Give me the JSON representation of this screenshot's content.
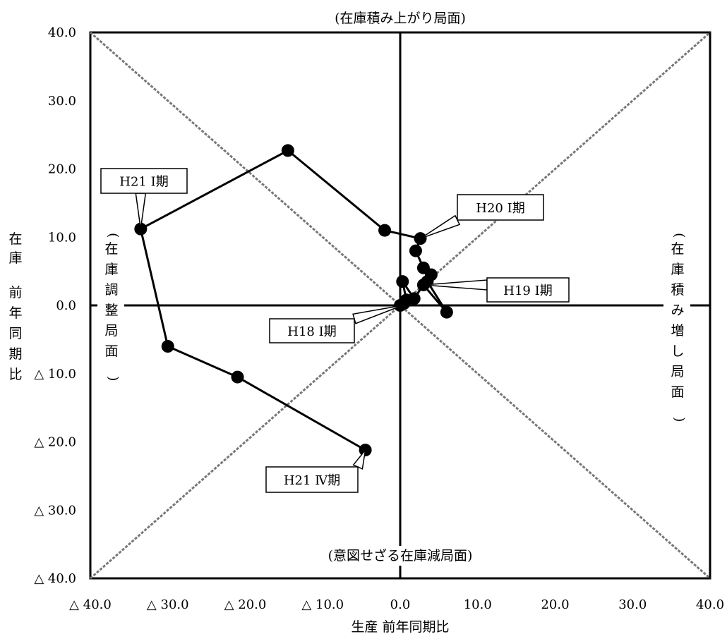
{
  "chart_data": {
    "type": "line",
    "xlabel": "生産 前年同期比",
    "ylabel": "在庫 前年同期比",
    "xlim": [
      -40,
      40
    ],
    "ylim": [
      -40,
      40
    ],
    "x_ticks": [
      "△ 40.0",
      "△ 30.0",
      "△ 20.0",
      "△ 10.0",
      "0.0",
      "10.0",
      "20.0",
      "30.0",
      "40.0"
    ],
    "y_ticks": [
      "40.0",
      "30.0",
      "20.0",
      "10.0",
      "0.0",
      "△ 10.0",
      "△ 20.0",
      "△ 30.0",
      "△ 40.0"
    ],
    "x_tick_values": [
      -40,
      -30,
      -20,
      -10,
      0,
      10,
      20,
      30,
      40
    ],
    "y_tick_values": [
      40,
      30,
      20,
      10,
      0,
      -10,
      -20,
      -30,
      -40
    ],
    "quadrant_labels": {
      "top": "(在庫積み上がり局面)",
      "bottom": "(意図せざる在庫減局面)",
      "left": "(在庫調整局面)",
      "right": "(在庫積み増し局面)"
    },
    "series": [
      {
        "x": [
          0.0,
          0.5,
          0.8,
          0.3,
          1.8,
          3.0,
          6.0,
          3.5,
          4.0,
          3.0,
          2.0,
          2.6,
          -2.0,
          -14.5,
          -33.5,
          -30.0,
          -21.0,
          -4.5
        ],
        "y": [
          0.0,
          0.3,
          0.8,
          3.5,
          1.0,
          3.0,
          -1.0,
          3.5,
          4.5,
          5.5,
          8.0,
          9.8,
          11.0,
          22.7,
          11.2,
          -6.0,
          -10.5,
          -21.2
        ]
      }
    ],
    "annotations": [
      {
        "label": "H18 I期",
        "x": 0.3,
        "y": 0.0
      },
      {
        "label": "H19 I期",
        "x": 3.0,
        "y": 3.0
      },
      {
        "label": "H20 I期",
        "x": 2.6,
        "y": 9.8
      },
      {
        "label": "H21 I期",
        "x": -33.5,
        "y": 11.2
      },
      {
        "label": "H21 Ⅳ期",
        "x": -4.5,
        "y": -21.2
      }
    ]
  },
  "colors": {
    "line": "#000000",
    "diagonal": "#777777",
    "background": "#ffffff"
  }
}
